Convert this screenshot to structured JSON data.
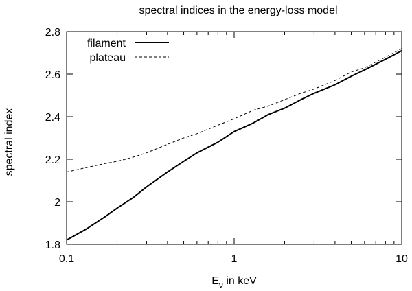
{
  "chart_data": {
    "type": "line",
    "title": "spectral indices in the energy-loss model",
    "xlabel_main": "E",
    "xlabel_sub": "ν",
    "xlabel_rest": " in keV",
    "ylabel": "spectral index",
    "xscale": "log",
    "xlim": [
      0.1,
      10
    ],
    "ylim": [
      1.8,
      2.8
    ],
    "x_ticks": [
      {
        "value": 0.1,
        "label": "0.1"
      },
      {
        "value": 1,
        "label": "1"
      },
      {
        "value": 10,
        "label": "10"
      }
    ],
    "y_ticks": [
      {
        "value": 1.8,
        "label": "1.8"
      },
      {
        "value": 2.0,
        "label": "2"
      },
      {
        "value": 2.2,
        "label": "2.2"
      },
      {
        "value": 2.4,
        "label": "2.4"
      },
      {
        "value": 2.6,
        "label": "2.6"
      },
      {
        "value": 2.8,
        "label": "2.8"
      }
    ],
    "legend_position": "top-left",
    "series": [
      {
        "name": "filament",
        "style": "solid",
        "x": [
          0.1,
          0.13,
          0.17,
          0.2,
          0.25,
          0.3,
          0.4,
          0.5,
          0.6,
          0.8,
          1.0,
          1.3,
          1.6,
          2.0,
          2.5,
          3.0,
          4.0,
          5.0,
          6.0,
          8.0,
          10.0
        ],
        "y": [
          1.82,
          1.87,
          1.93,
          1.97,
          2.02,
          2.07,
          2.14,
          2.19,
          2.23,
          2.28,
          2.33,
          2.37,
          2.41,
          2.44,
          2.48,
          2.51,
          2.55,
          2.59,
          2.62,
          2.67,
          2.71
        ]
      },
      {
        "name": "plateau",
        "style": "dashed",
        "x": [
          0.1,
          0.13,
          0.17,
          0.2,
          0.25,
          0.3,
          0.4,
          0.5,
          0.6,
          0.8,
          1.0,
          1.3,
          1.6,
          2.0,
          2.5,
          3.0,
          4.0,
          5.0,
          6.0,
          8.0,
          10.0
        ],
        "y": [
          2.14,
          2.16,
          2.18,
          2.19,
          2.21,
          2.23,
          2.27,
          2.3,
          2.32,
          2.36,
          2.39,
          2.43,
          2.45,
          2.48,
          2.51,
          2.53,
          2.57,
          2.61,
          2.63,
          2.68,
          2.72
        ]
      }
    ]
  }
}
